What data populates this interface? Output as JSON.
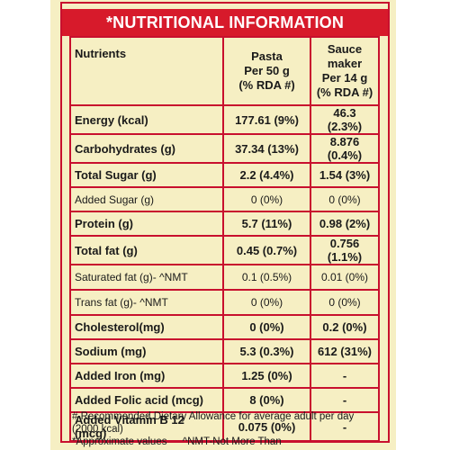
{
  "title": "*NUTRITIONAL INFORMATION",
  "table": {
    "header": {
      "nutrients": "Nutrients",
      "pasta": [
        "Pasta",
        "Per 50 g",
        "(% RDA #)"
      ],
      "sauce": [
        "Sauce maker",
        "Per 14 g",
        "(% RDA #)"
      ]
    },
    "rows": [
      {
        "name": "Energy (kcal)",
        "pasta": "177.61 (9%)",
        "sauce": "46.3 (2.3%)"
      },
      {
        "name": "Carbohydrates (g)",
        "pasta": "37.34 (13%)",
        "sauce": "8.876 (0.4%)"
      },
      {
        "name": "Total Sugar (g)",
        "pasta": "2.2 (4.4%)",
        "sauce": "1.54 (3%)"
      },
      {
        "name": "Added Sugar (g)",
        "pasta": "0 (0%)",
        "sauce": "0 (0%)"
      },
      {
        "name": "Protein (g)",
        "pasta": "5.7 (11%)",
        "sauce": "0.98 (2%)"
      },
      {
        "name": "Total fat (g)",
        "pasta": "0.45 (0.7%)",
        "sauce": "0.756 (1.1%)"
      },
      {
        "name": "Saturated fat (g)- ^NMT",
        "pasta": "0.1 (0.5%)",
        "sauce": "0.01 (0%)"
      },
      {
        "name": "Trans fat (g)- ^NMT",
        "pasta": "0 (0%)",
        "sauce": "0 (0%)"
      },
      {
        "name": "Cholesterol(mg)",
        "pasta": "0 (0%)",
        "sauce": "0.2 (0%)"
      },
      {
        "name": "Sodium (mg)",
        "pasta": "5.3 (0.3%)",
        "sauce": "612 (31%)"
      },
      {
        "name": "Added Iron (mg)",
        "pasta": "1.25 (0%)",
        "sauce": "-"
      },
      {
        "name": "Added Folic acid (mcg)",
        "pasta": "8 (0%)",
        "sauce": "-"
      },
      {
        "name": "Added Vitamin B 12 (mcg)",
        "pasta": "0.075 (0%)",
        "sauce": "-"
      }
    ]
  },
  "footnotes": {
    "line1": "# Recommended Dietary Allowance for average adult per day (2000 kcal)",
    "line2a": "*Approximate values",
    "line2b": "^NMT-Not More Than"
  },
  "colors": {
    "accent": "#d71a2b",
    "panel": "#f6efc3"
  }
}
